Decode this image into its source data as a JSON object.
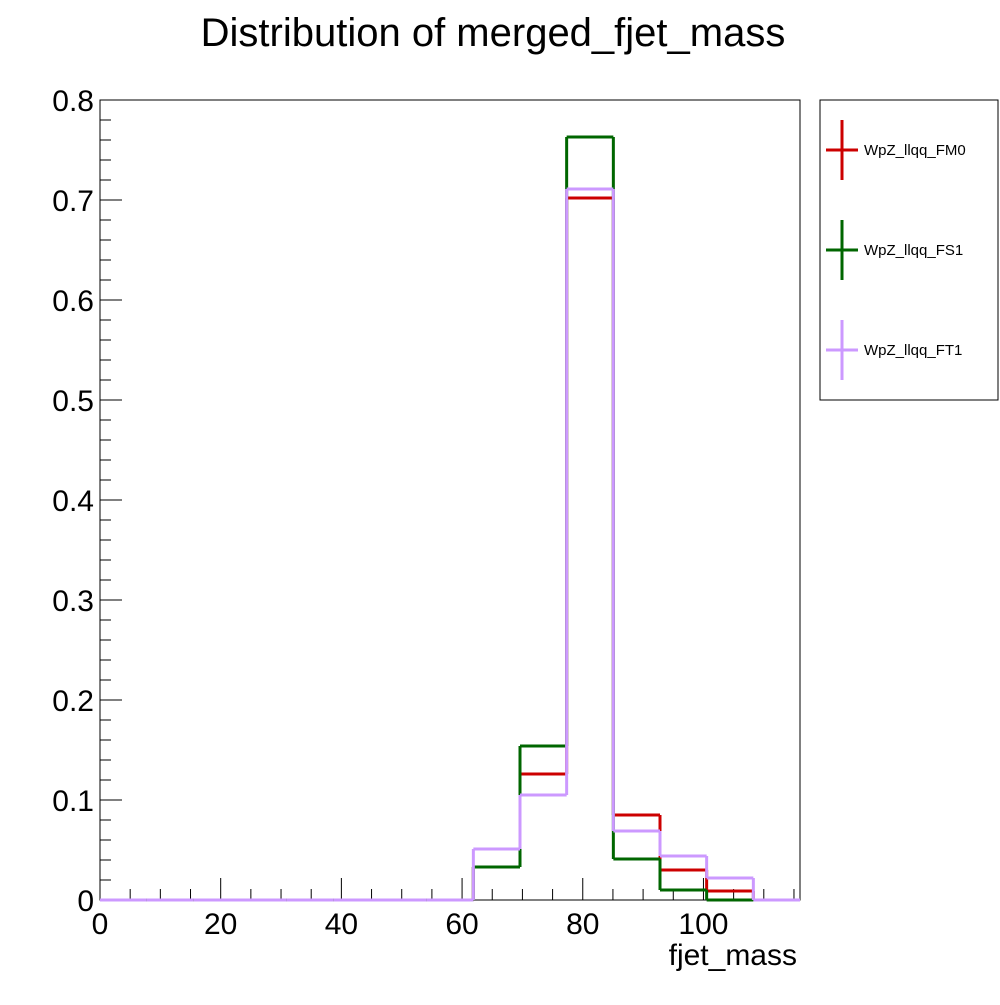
{
  "chart_data": {
    "type": "histogram",
    "title": "Distribution of merged_fjet_mass",
    "xlabel": "fjet_mass",
    "ylabel": "",
    "xlim": [
      0,
      116
    ],
    "ylim": [
      0,
      0.8
    ],
    "grid": false,
    "legend_position": "right",
    "bin_edges": [
      0,
      7.73,
      15.47,
      23.2,
      30.93,
      38.67,
      46.4,
      54.13,
      61.87,
      69.6,
      77.33,
      85.07,
      92.8,
      100.53,
      108.27,
      116
    ],
    "x_ticks": [
      0,
      20,
      40,
      60,
      80,
      100
    ],
    "x_tick_labels": [
      "0",
      "20",
      "40",
      "60",
      "80",
      "100"
    ],
    "y_ticks": [
      0,
      0.1,
      0.2,
      0.3,
      0.4,
      0.5,
      0.6,
      0.7,
      0.8
    ],
    "y_tick_labels": [
      "0",
      "0.1",
      "0.2",
      "0.3",
      "0.4",
      "0.5",
      "0.6",
      "0.7",
      "0.8"
    ],
    "series": [
      {
        "name": "WpZ_llqq_FM0",
        "color": "#cc0000",
        "values": [
          0,
          0,
          0,
          0,
          0,
          0,
          0,
          0,
          0.033,
          0.126,
          0.702,
          0.085,
          0.03,
          0.009,
          0
        ]
      },
      {
        "name": "WpZ_llqq_FS1",
        "color": "#006600",
        "values": [
          0,
          0,
          0,
          0,
          0,
          0,
          0,
          0,
          0.033,
          0.154,
          0.763,
          0.041,
          0.01,
          0.0,
          0
        ]
      },
      {
        "name": "WpZ_llqq_FT1",
        "color": "#cc99ff",
        "values": [
          0,
          0,
          0,
          0,
          0,
          0,
          0,
          0,
          0.051,
          0.105,
          0.711,
          0.069,
          0.044,
          0.022,
          0
        ]
      }
    ]
  }
}
